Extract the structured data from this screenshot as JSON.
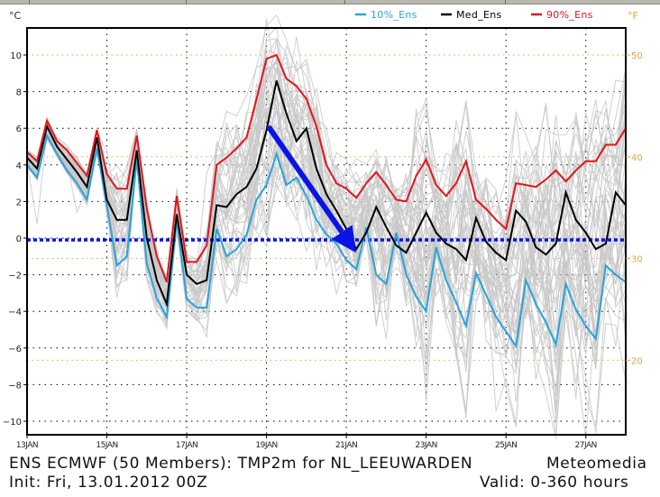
{
  "chart_data": {
    "type": "line",
    "title": "ENS ECMWF (50 Members): TMP2m for NL_LEEUWARDEN",
    "subtitle": "Init: Fri, 13.01.2012 00Z",
    "credit": "Meteomedia",
    "valid": "Valid: 0-360 hours",
    "ylabel": "°C",
    "ylabel_right": "°F",
    "ylim": [
      -11.5,
      11.5
    ],
    "y_ticks": [
      10,
      8,
      6,
      4,
      2,
      0,
      -2,
      -4,
      -6,
      -8,
      -10
    ],
    "y_tick_labels": [
      "10",
      "8",
      "6",
      "4",
      "2",
      "0",
      "−2",
      "−4",
      "−6",
      "−8",
      "−10"
    ],
    "y_right_ticks_f": [
      50,
      40,
      30,
      20
    ],
    "y_right_tick_labels": [
      "50",
      "40",
      "30",
      "20"
    ],
    "x_unit": "hours since init",
    "xlim": [
      0,
      360
    ],
    "x_ticks_hours": [
      0,
      48,
      96,
      144,
      192,
      240,
      288,
      336
    ],
    "x_tick_labels": [
      "13JAN",
      "15JAN",
      "17JAN",
      "19JAN",
      "21JAN",
      "23JAN",
      "25JAN",
      "27JAN"
    ],
    "x_step_hours": 6,
    "grid": true,
    "legend_position": "top",
    "colors": {
      "p10": "#29a3d9",
      "median": "#000000",
      "p90": "#e3141c",
      "members": "#c8c8c8",
      "fahrenheit": "#f0a040",
      "grid": "#000000",
      "annotation": "#0a14e6"
    },
    "series": [
      {
        "name": "10%_Ens",
        "key": "p10",
        "values": [
          4.0,
          3.3,
          5.6,
          4.6,
          3.7,
          3.0,
          2.1,
          4.9,
          1.8,
          -1.5,
          -1.0,
          4.3,
          -1.4,
          -3.3,
          -4.3,
          1.0,
          -3.3,
          -3.8,
          -3.8,
          0.5,
          -1.0,
          -0.6,
          0.2,
          2.1,
          2.9,
          4.6,
          2.9,
          3.3,
          2.3,
          1.0,
          0.2,
          -0.3,
          -1.2,
          -1.7,
          0.6,
          -2.0,
          -2.5,
          0.3,
          -2.0,
          -3.2,
          -4.0,
          -0.5,
          -2.3,
          -3.5,
          -4.8,
          -1.9,
          -3.1,
          -4.3,
          -5.1,
          -5.9,
          -2.3,
          -3.6,
          -4.6,
          -5.8,
          -2.5,
          -3.9,
          -4.8,
          -5.5,
          -1.5,
          -2.0,
          -2.4
        ]
      },
      {
        "name": "Med_Ens",
        "key": "median",
        "values": [
          4.4,
          3.8,
          6.1,
          5.0,
          4.3,
          3.6,
          2.8,
          5.5,
          2.1,
          1.0,
          1.0,
          4.8,
          0.0,
          -2.3,
          -3.6,
          1.3,
          -2.0,
          -2.5,
          -2.3,
          1.8,
          1.7,
          2.4,
          2.8,
          3.8,
          5.9,
          8.6,
          6.8,
          5.3,
          6.0,
          3.8,
          2.4,
          1.5,
          0.5,
          -0.6,
          0.3,
          1.7,
          0.6,
          -0.4,
          -0.8,
          0.3,
          1.4,
          0.3,
          -0.3,
          -0.6,
          -1.2,
          1.1,
          -0.2,
          -0.8,
          -1.2,
          1.5,
          0.9,
          -0.5,
          -0.9,
          -0.3,
          2.5,
          1.0,
          0.3,
          -0.6,
          -0.3,
          2.5,
          1.8
        ]
      },
      {
        "name": "90%_Ens",
        "key": "p90",
        "values": [
          4.7,
          4.2,
          6.4,
          5.3,
          4.8,
          4.1,
          3.4,
          5.9,
          3.5,
          2.7,
          2.7,
          5.6,
          1.6,
          -1.0,
          -2.4,
          2.3,
          -1.3,
          -1.3,
          -0.4,
          4.0,
          4.4,
          4.9,
          5.5,
          7.6,
          9.8,
          10.0,
          8.7,
          8.3,
          7.6,
          6.1,
          4.0,
          3.0,
          2.7,
          2.2,
          3.0,
          3.6,
          2.9,
          2.1,
          2.0,
          3.4,
          4.3,
          2.9,
          2.3,
          3.0,
          4.2,
          2.1,
          1.6,
          1.0,
          0.5,
          3.0,
          2.9,
          2.8,
          3.2,
          3.7,
          3.1,
          3.7,
          4.2,
          4.2,
          5.1,
          5.1,
          6.0
        ]
      }
    ],
    "ensemble_members": 50,
    "reference_line_celsius": -0.1,
    "annotation_arrow": {
      "from_hours": 144,
      "from_value": 6.1,
      "to_hours": 198,
      "to_value": -0.8
    }
  },
  "legend": {
    "items": [
      {
        "label": "10%_Ens",
        "key": "p10"
      },
      {
        "label": "Med_Ens",
        "key": "median"
      },
      {
        "label": "90%_Ens",
        "key": "p90"
      }
    ]
  }
}
